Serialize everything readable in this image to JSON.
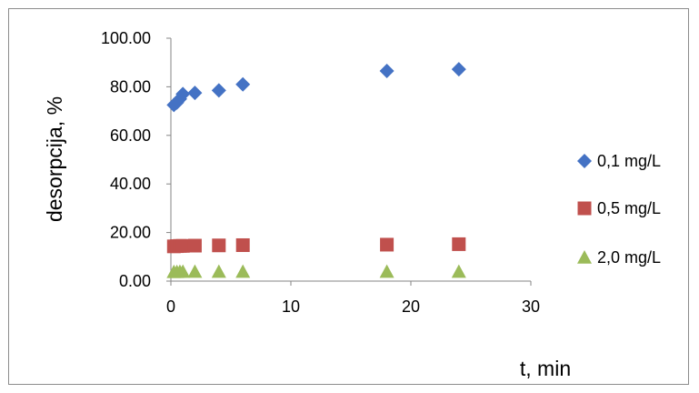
{
  "chart_data": {
    "type": "scatter",
    "title": "",
    "xlabel": "t, min",
    "ylabel": "desorpcija, %",
    "xlim": [
      0,
      30
    ],
    "ylim": [
      0,
      100
    ],
    "xticks": [
      "0",
      "10",
      "20",
      "30"
    ],
    "yticks": [
      "0.00",
      "20.00",
      "40.00",
      "60.00",
      "80.00",
      "100.00"
    ],
    "grid": false,
    "legend_position": "right",
    "series": [
      {
        "name": "0,1 mg/L",
        "marker": "diamond",
        "color": "#4472C4",
        "points": [
          [
            0.25,
            72.5
          ],
          [
            0.5,
            73.5
          ],
          [
            0.75,
            75.0
          ],
          [
            1,
            77.0
          ],
          [
            2,
            77.5
          ],
          [
            4,
            78.5
          ],
          [
            6,
            81.0
          ],
          [
            18,
            86.5
          ],
          [
            24,
            87.2
          ]
        ]
      },
      {
        "name": "0,5 mg/L",
        "marker": "square",
        "color": "#C0504D",
        "points": [
          [
            0.25,
            14.3
          ],
          [
            0.5,
            14.4
          ],
          [
            0.75,
            14.5
          ],
          [
            1,
            14.5
          ],
          [
            2,
            14.6
          ],
          [
            4,
            14.7
          ],
          [
            6,
            14.8
          ],
          [
            18,
            15.0
          ],
          [
            24,
            15.2
          ]
        ]
      },
      {
        "name": "2,0 mg/L",
        "marker": "triangle",
        "color": "#9BBB59",
        "points": [
          [
            0.25,
            3.8
          ],
          [
            0.5,
            3.8
          ],
          [
            0.75,
            3.9
          ],
          [
            1,
            3.9
          ],
          [
            2,
            3.9
          ],
          [
            4,
            3.9
          ],
          [
            6,
            3.9
          ],
          [
            18,
            3.9
          ],
          [
            24,
            3.9
          ]
        ]
      }
    ]
  }
}
